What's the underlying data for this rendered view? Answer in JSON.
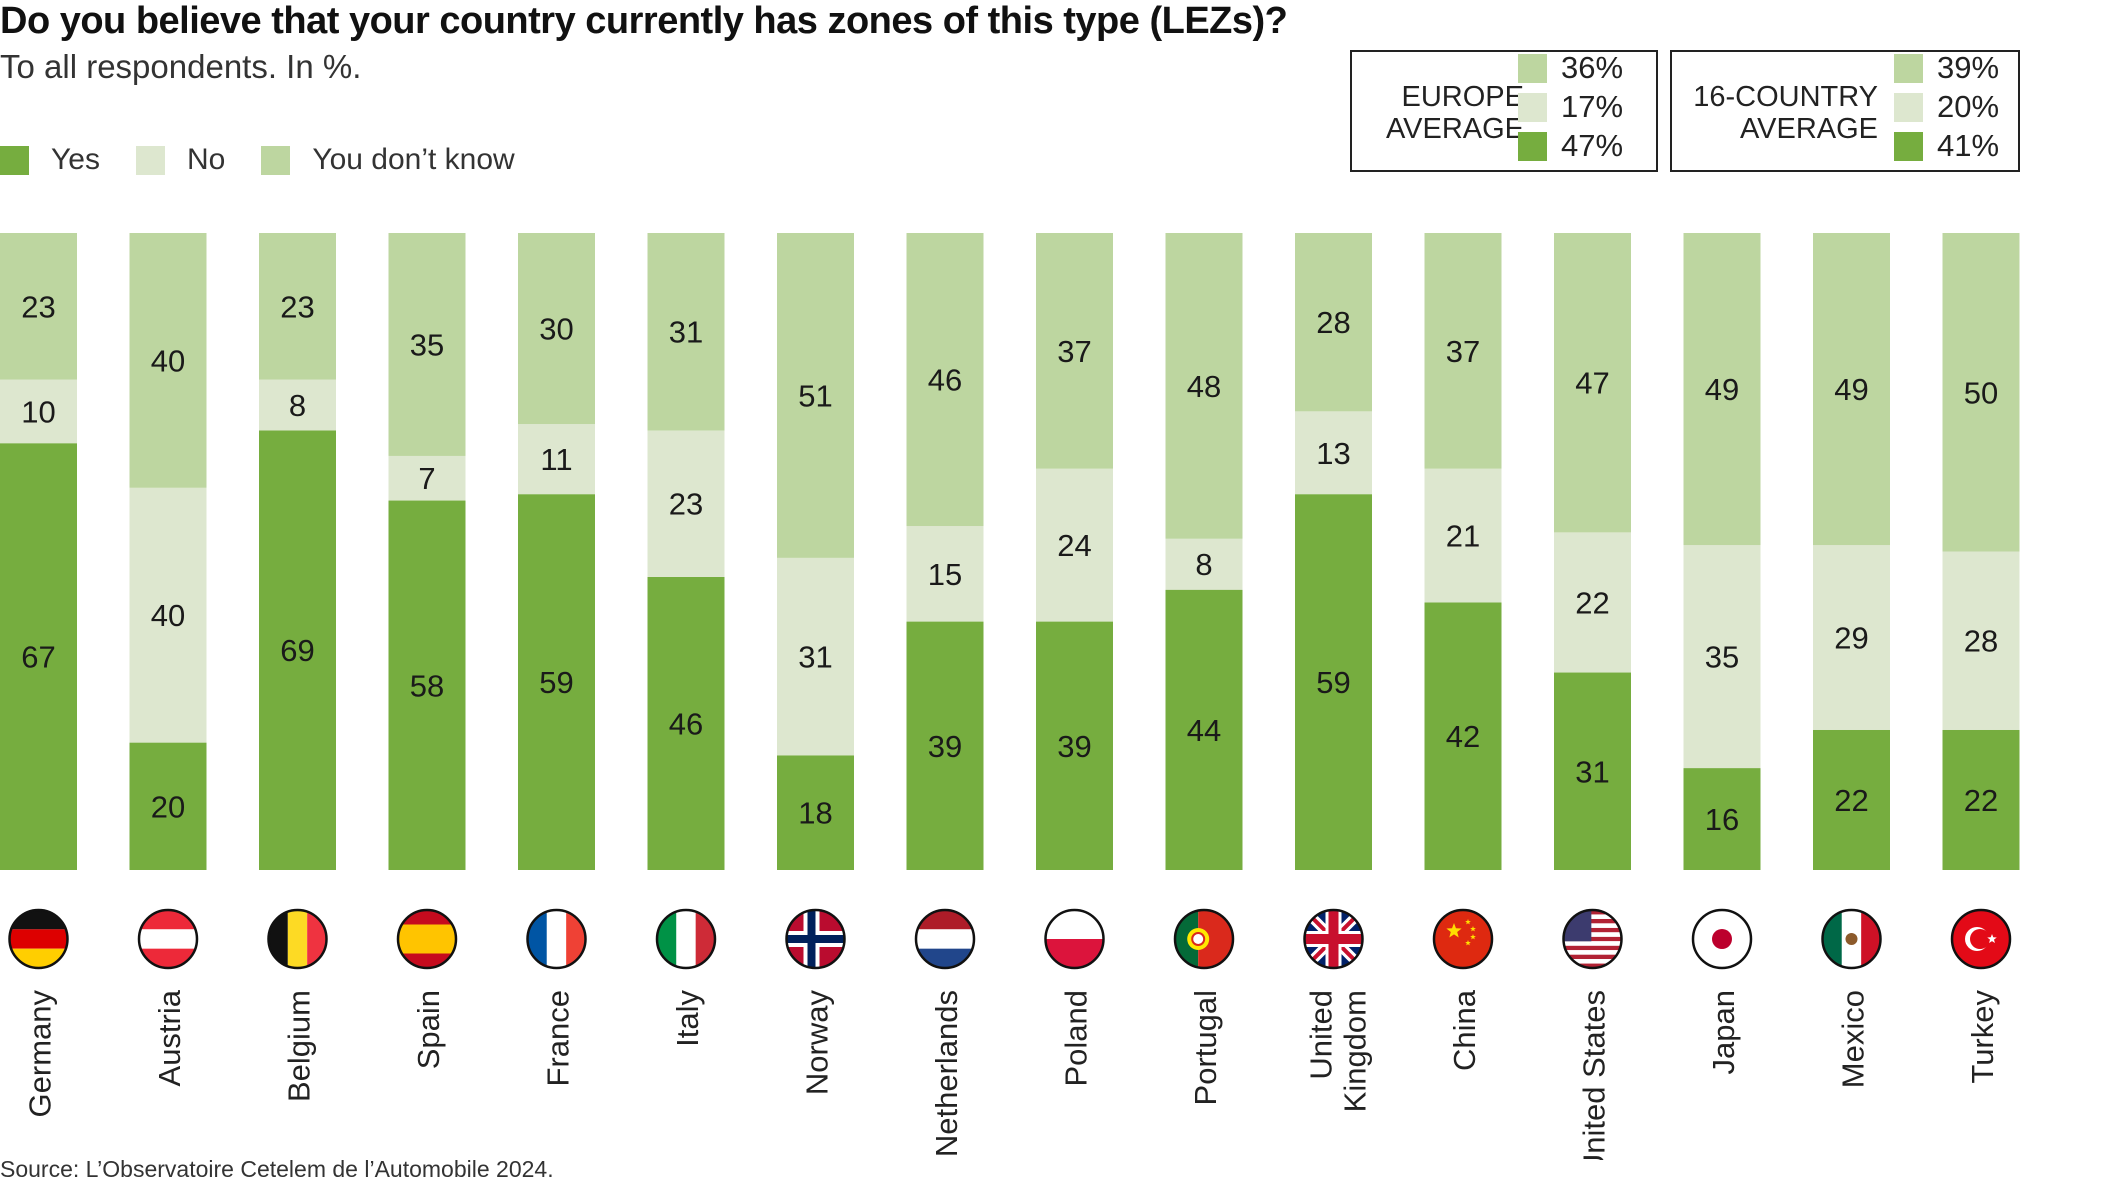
{
  "title": "Do you believe that your country currently has zones of this type (LEZs)?",
  "subtitle": "To all respondents. In %.",
  "legend": [
    {
      "label": "Yes",
      "color": "#76ad3f"
    },
    {
      "label": "No",
      "color": "#dde7cf"
    },
    {
      "label": "You don’t know",
      "color": "#bdd6a0"
    }
  ],
  "averages": {
    "europe": {
      "label_line1": "EUROPE",
      "label_line2": "AVERAGE",
      "dont_know": "36%",
      "no": "17%",
      "yes": "47%"
    },
    "sixteen": {
      "label_line1": "16-COUNTRY",
      "label_line2": "AVERAGE",
      "dont_know": "39%",
      "no": "20%",
      "yes": "41%"
    }
  },
  "chart_data": {
    "type": "bar",
    "stacked": true,
    "orientation": "vertical",
    "title": "Do you believe that your country currently has zones of this type (LEZs)?",
    "ylabel": "%",
    "ylim": [
      0,
      100
    ],
    "categories": [
      "Germany",
      "Austria",
      "Belgium",
      "Spain",
      "France",
      "Italy",
      "Norway",
      "Netherlands",
      "Poland",
      "Portugal",
      "United Kingdom",
      "China",
      "United States",
      "Japan",
      "Mexico",
      "Turkey"
    ],
    "series": [
      {
        "name": "Yes",
        "color": "#76ad3f",
        "values": [
          67,
          20,
          69,
          58,
          59,
          46,
          18,
          39,
          39,
          44,
          59,
          42,
          31,
          16,
          22,
          22
        ]
      },
      {
        "name": "No",
        "color": "#dde7cf",
        "values": [
          10,
          40,
          8,
          7,
          11,
          23,
          31,
          15,
          24,
          8,
          13,
          21,
          22,
          35,
          29,
          28
        ]
      },
      {
        "name": "You don’t know",
        "color": "#bdd6a0",
        "values": [
          23,
          40,
          23,
          35,
          30,
          31,
          51,
          46,
          37,
          48,
          28,
          37,
          47,
          49,
          49,
          50
        ]
      }
    ],
    "flags": [
      "germany-flag",
      "austria-flag",
      "belgium-flag",
      "spain-flag",
      "france-flag",
      "italy-flag",
      "norway-flag",
      "netherlands-flag",
      "poland-flag",
      "portugal-flag",
      "uk-flag",
      "china-flag",
      "usa-flag",
      "japan-flag",
      "mexico-flag",
      "turkey-flag"
    ]
  },
  "source": "Source: L’Observatoire Cetelem de l’Automobile 2024."
}
